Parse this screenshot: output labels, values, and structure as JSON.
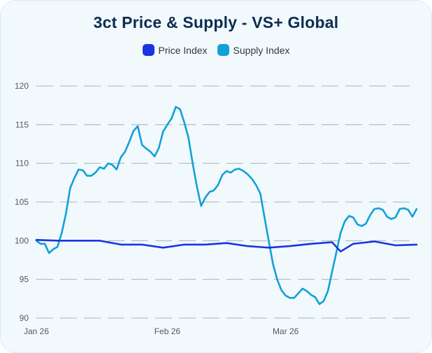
{
  "header": {
    "title": "3ct Price & Supply - VS+ Global"
  },
  "legend": [
    {
      "label": "Price Index",
      "color": "#1a35e0"
    },
    {
      "label": "Supply Index",
      "color": "#12a0d8"
    }
  ],
  "chart_data": {
    "type": "line",
    "title": "3ct Price & Supply - VS+ Global",
    "ylim": [
      90,
      120
    ],
    "y_ticks": [
      90,
      95,
      100,
      105,
      110,
      115,
      120
    ],
    "x_ticks": [
      "Jan 26",
      "Feb 26",
      "Mar 26"
    ],
    "x_tick_days": [
      0,
      31,
      59
    ],
    "x_range_days": [
      0,
      90
    ],
    "grid": "horizontal dashed",
    "legend_position": "top",
    "series": [
      {
        "name": "Price Index",
        "color": "#1a35e0",
        "x_days": [
          0,
          5,
          10,
          15,
          20,
          25,
          30,
          35,
          40,
          45,
          50,
          55,
          60,
          65,
          70,
          72,
          75,
          80,
          85,
          90
        ],
        "values": [
          100.1,
          100.0,
          100.0,
          100.0,
          99.5,
          99.5,
          99.1,
          99.5,
          99.5,
          99.7,
          99.3,
          99.1,
          99.3,
          99.6,
          99.8,
          98.6,
          99.6,
          99.9,
          99.4,
          99.5
        ]
      },
      {
        "name": "Supply Index",
        "color": "#12a0d8",
        "x_days": [
          0,
          1,
          2,
          3,
          4,
          5,
          6,
          7,
          8,
          9,
          10,
          11,
          12,
          13,
          14,
          15,
          16,
          17,
          18,
          19,
          20,
          21,
          22,
          23,
          24,
          25,
          26,
          27,
          28,
          29,
          30,
          31,
          32,
          33,
          34,
          35,
          36,
          37,
          38,
          39,
          40,
          41,
          42,
          43,
          44,
          45,
          46,
          47,
          48,
          49,
          50,
          51,
          52,
          53,
          54,
          55,
          56,
          57,
          58,
          59,
          60,
          61,
          62,
          63,
          64,
          65,
          66,
          67,
          68,
          69,
          70,
          71,
          72,
          73,
          74,
          75,
          76,
          77,
          78,
          79,
          80,
          81,
          82,
          83,
          84,
          85,
          86,
          87,
          88,
          89,
          90
        ],
        "values": [
          100.0,
          99.6,
          99.6,
          98.4,
          98.9,
          99.2,
          101.0,
          103.5,
          106.8,
          108.1,
          109.2,
          109.1,
          108.4,
          108.4,
          108.8,
          109.5,
          109.3,
          110.0,
          109.8,
          109.2,
          110.8,
          111.5,
          112.8,
          114.2,
          114.8,
          112.4,
          111.9,
          111.5,
          110.9,
          112.0,
          114.1,
          115.0,
          115.8,
          117.3,
          117.0,
          115.3,
          113.3,
          110.0,
          107.0,
          104.5,
          105.6,
          106.3,
          106.5,
          107.2,
          108.5,
          109.0,
          108.8,
          109.2,
          109.3,
          109.0,
          108.6,
          108.0,
          107.2,
          106.1,
          103.0,
          100.0,
          97.0,
          95.0,
          93.6,
          92.9,
          92.6,
          92.6,
          93.2,
          93.8,
          93.5,
          93.0,
          92.7,
          91.8,
          92.2,
          93.5,
          96.0,
          98.5,
          101.0,
          102.5,
          103.2,
          103.0,
          102.1,
          101.9,
          102.2,
          103.3,
          104.1,
          104.2,
          104.0,
          103.1,
          102.8,
          103.0,
          104.1,
          104.2,
          104.0,
          103.1,
          104.1
        ]
      }
    ]
  }
}
